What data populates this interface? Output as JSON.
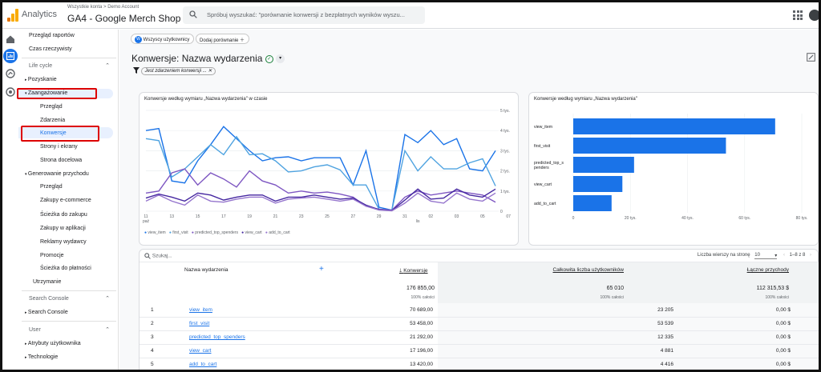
{
  "topbar": {
    "app_name": "Analytics",
    "breadcrumb_root": "Wszystkie konta",
    "breadcrumb_account": "Demo Account",
    "property": "GA4 - Google Merch Shop",
    "search_placeholder": "Spróbuj wyszukać: \"porównanie konwersji z bezpłatnych wyników wyszu..."
  },
  "sidebar": {
    "top_items": [
      "Przegląd raportów",
      "Czas rzeczywisty"
    ],
    "section_lifecycle": "Life cycle",
    "acquisition": "Pozyskanie",
    "engagement": "Zaangażowanie",
    "engagement_items": [
      "Przegląd",
      "Zdarzenia",
      "Konwersje",
      "Strony i ekrany",
      "Strona docelowa"
    ],
    "monetization": "Generowanie przychodu",
    "monetization_items": [
      "Przegląd",
      "Zakupy e-commerce",
      "Ścieżka do zakupu",
      "Zakupy w aplikacji",
      "Reklamy wydawcy",
      "Promocje",
      "Ścieżka do płatności"
    ],
    "retention": "Utrzymanie",
    "section_search_console": "Search Console",
    "search_console_item": "Search Console",
    "section_user": "User",
    "user_items": [
      "Atrybuty użytkownika",
      "Technologie"
    ]
  },
  "content": {
    "segment_chip_badge": "W",
    "segment_chip": "Wszyscy użytkownicy",
    "add_comparison": "Dodaj porównanie",
    "page_title": "Konwersje: Nazwa wydarzenia",
    "filter_chip": "Jest zdarzeniem konwersji ..."
  },
  "line_chart": {
    "title": "Konwersje według wymiaru „Nazwa wydarzenia\" w czasie",
    "x_labels": [
      "11",
      "13",
      "15",
      "17",
      "19",
      "21",
      "23",
      "25",
      "27",
      "29",
      "31",
      "02",
      "03",
      "05",
      "07"
    ],
    "x_sublabel_start": "paź",
    "x_sublabel_mid": "lis",
    "y_labels": [
      "5 tys.",
      "4 tys.",
      "3 tys.",
      "2 tys.",
      "1 tys.",
      "0"
    ],
    "legend": [
      "view_item",
      "first_visit",
      "predicted_top_spenders",
      "view_cart",
      "add_to_cart"
    ]
  },
  "bar_chart": {
    "title": "Konwersje według wymiaru „Nazwa wydarzenia\"",
    "categories": [
      "view_item",
      "first_visit",
      "predicted_top_s\npenders",
      "view_cart",
      "add_to_cart"
    ],
    "x_labels": [
      "0",
      "20 tys.",
      "40 tys.",
      "60 tys.",
      "80 tys."
    ]
  },
  "chart_data": [
    {
      "type": "line",
      "title": "Konwersje według wymiaru „Nazwa wydarzenia\" w czasie",
      "x": [
        "11",
        "12",
        "13",
        "14",
        "15",
        "16",
        "17",
        "18",
        "19",
        "20",
        "21",
        "22",
        "23",
        "24",
        "25",
        "26",
        "27",
        "28",
        "29",
        "30",
        "31",
        "01",
        "02",
        "03",
        "04",
        "05",
        "06",
        "07"
      ],
      "ylim": [
        0,
        5000
      ],
      "series": [
        {
          "name": "view_item",
          "color": "#1a73e8",
          "values": [
            4000,
            4100,
            1500,
            1400,
            2500,
            3300,
            4200,
            3600,
            3000,
            2500,
            2650,
            2700,
            2500,
            2650,
            2650,
            2650,
            1300,
            3000,
            200,
            50,
            3800,
            3400,
            4000,
            3300,
            3600,
            2100,
            2000,
            3000
          ]
        },
        {
          "name": "first_visit",
          "color": "#4fa3e0",
          "values": [
            3600,
            3500,
            1700,
            2100,
            2700,
            3300,
            2800,
            3700,
            2800,
            2850,
            2500,
            1950,
            2000,
            2200,
            2300,
            2050,
            1300,
            1300,
            100,
            50,
            3000,
            2000,
            2700,
            2100,
            2100,
            2400,
            2600,
            1250
          ]
        },
        {
          "name": "predicted_top_spenders",
          "color": "#7e57c2",
          "values": [
            900,
            1000,
            1900,
            2100,
            1300,
            1900,
            1600,
            1200,
            2000,
            1500,
            1300,
            900,
            1000,
            900,
            950,
            850,
            700,
            250,
            100,
            50,
            700,
            1000,
            800,
            900,
            1000,
            900,
            800,
            450
          ]
        },
        {
          "name": "view_cart",
          "color": "#4527a0",
          "values": [
            650,
            850,
            700,
            500,
            900,
            800,
            550,
            700,
            800,
            800,
            500,
            700,
            700,
            800,
            700,
            600,
            650,
            300,
            80,
            30,
            550,
            1100,
            600,
            650,
            1100,
            800,
            700,
            1100
          ]
        },
        {
          "name": "add_to_cart",
          "color": "#9575cd",
          "values": [
            500,
            800,
            500,
            300,
            800,
            500,
            450,
            600,
            700,
            700,
            400,
            600,
            650,
            700,
            600,
            500,
            600,
            250,
            60,
            20,
            400,
            900,
            500,
            400,
            900,
            600,
            500,
            900
          ]
        }
      ]
    },
    {
      "type": "bar",
      "title": "Konwersje według wymiaru „Nazwa wydarzenia\"",
      "categories": [
        "view_item",
        "first_visit",
        "predicted_top_spenders",
        "view_cart",
        "add_to_cart"
      ],
      "values": [
        70689,
        53458,
        21292,
        17196,
        13420
      ],
      "xlim": [
        0,
        80000
      ],
      "color": "#1a73e8"
    }
  ],
  "table": {
    "search_placeholder": "Szukaj...",
    "rows_per_page_label": "Liczba wierszy na stronę",
    "rows_per_page": "10",
    "pagination": "1–8 z 8",
    "headers": [
      "Nazwa wydarzenia",
      "Konwersje",
      "Całkowita liczba użytkowników",
      "Łączne przychody"
    ],
    "totals": {
      "conversions": "176 855,00",
      "conversions_pct": "100% całości",
      "users": "65 010",
      "users_pct": "100% całości",
      "revenue": "112 315,53 $",
      "revenue_pct": "100% całości"
    },
    "rows": [
      {
        "idx": "1",
        "name": "view_item",
        "conv": "70 689,00",
        "users": "23 205",
        "rev": "0,00 $"
      },
      {
        "idx": "2",
        "name": "first_visit",
        "conv": "53 458,00",
        "users": "53 539",
        "rev": "0,00 $"
      },
      {
        "idx": "3",
        "name": "predicted_top_spenders",
        "conv": "21 292,00",
        "users": "12 335",
        "rev": "0,00 $"
      },
      {
        "idx": "4",
        "name": "view_cart",
        "conv": "17 196,00",
        "users": "4 881",
        "rev": "0,00 $"
      },
      {
        "idx": "5",
        "name": "add_to_cart",
        "conv": "13 420,00",
        "users": "4 416",
        "rev": "0,00 $"
      }
    ]
  }
}
